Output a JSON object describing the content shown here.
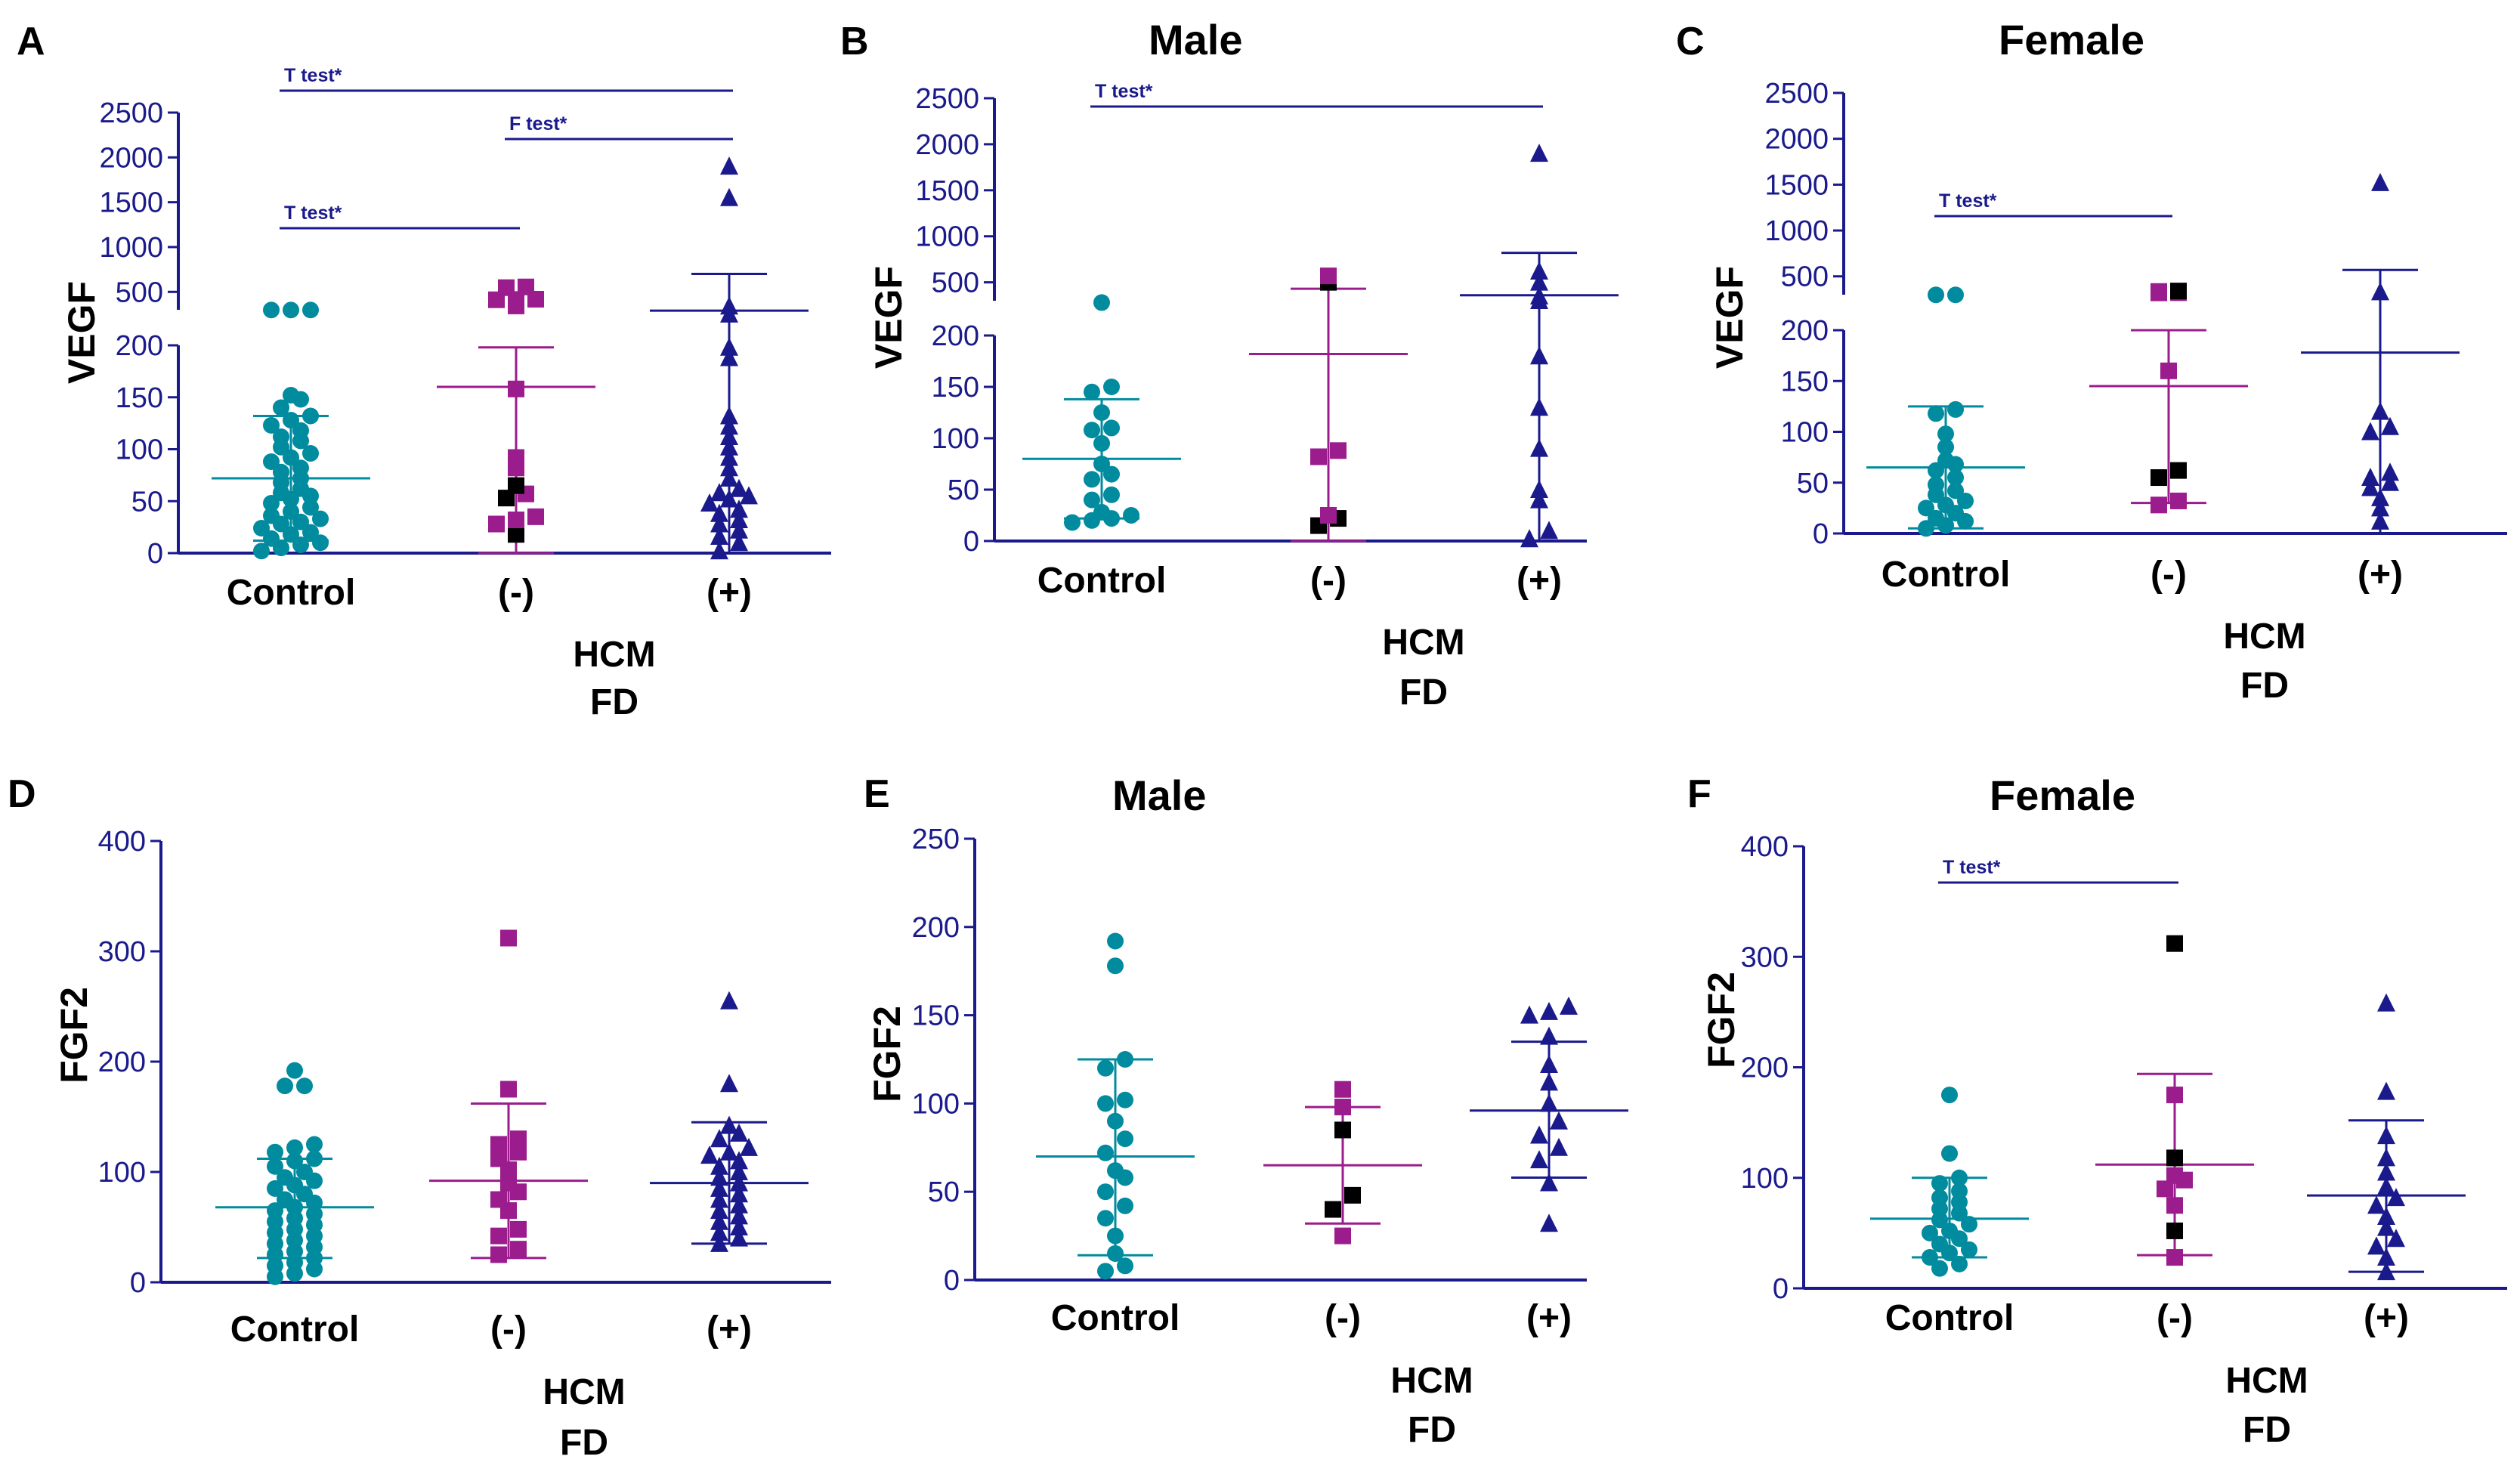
{
  "colors": {
    "axis": "#1a1a8c",
    "control": "#008b9e",
    "hcm_neg": "#9b1c8c",
    "fd_pos": "#1a1a8c",
    "black_marker": "#000000",
    "text": "#000000"
  },
  "chart_data": [
    {
      "id": "A",
      "type": "scatter",
      "panel_letter": "A",
      "title": "",
      "ylabel": "VEGF",
      "categories": [
        "Control",
        "(-)",
        "(+)"
      ],
      "xlabel_lines": [
        "HCM",
        "FD"
      ],
      "broken_axis": true,
      "lower_ylim": [
        0,
        200
      ],
      "lower_ticks": [
        0,
        50,
        100,
        150,
        200
      ],
      "upper_ylim": [
        300,
        2500
      ],
      "upper_ticks": [
        500,
        1000,
        1500,
        2000,
        2500
      ],
      "series": [
        {
          "name": "Control",
          "marker": "circle",
          "color": "#008b9e",
          "values": [
            2,
            5,
            8,
            10,
            14,
            18,
            20,
            24,
            28,
            30,
            33,
            36,
            40,
            44,
            48,
            52,
            55,
            58,
            62,
            68,
            72,
            78,
            82,
            88,
            92,
            96,
            102,
            108,
            112,
            118,
            123,
            128,
            132,
            140,
            148,
            152,
            298,
            298,
            298
          ],
          "black": [],
          "mean": 72,
          "sd_low": 12,
          "sd_high": 132
        },
        {
          "name": "(-)",
          "marker": "square",
          "color": "#9b1c8c",
          "values": [
            18,
            28,
            32,
            35,
            53,
            57,
            65,
            82,
            92,
            158,
            343,
            358,
            412,
            415,
            418,
            547,
            555
          ],
          "black": [
            18,
            53,
            65,
            548
          ],
          "mean": 160,
          "sd_low": 0,
          "sd_high": 198
        },
        {
          "name": "(+)",
          "marker": "triangle",
          "color": "#1a1a8c",
          "values": [
            2,
            10,
            16,
            22,
            28,
            32,
            38,
            42,
            48,
            52,
            55,
            58,
            62,
            72,
            82,
            92,
            102,
            112,
            122,
            132,
            188,
            198,
            250,
            340,
            1550,
            1900
          ],
          "black": [],
          "mean": 290,
          "sd_low": 0,
          "sd_high": 700
        }
      ],
      "significance": [
        {
          "label": "T test*",
          "from": 0,
          "to": 2,
          "level": 1
        },
        {
          "label": "F test*",
          "from": 1,
          "to": 2,
          "level": 2
        },
        {
          "label": "T test*",
          "from": 0,
          "to": 1,
          "level": 3
        }
      ]
    },
    {
      "id": "B",
      "type": "scatter",
      "panel_letter": "B",
      "title": "Male",
      "ylabel": "VEGF",
      "categories": [
        "Control",
        "(-)",
        "(+)"
      ],
      "xlabel_lines": [
        "HCM",
        "FD"
      ],
      "broken_axis": true,
      "lower_ylim": [
        0,
        200
      ],
      "lower_ticks": [
        0,
        50,
        100,
        150,
        200
      ],
      "upper_ylim": [
        300,
        2500
      ],
      "upper_ticks": [
        500,
        1000,
        1500,
        2000,
        2500
      ],
      "series": [
        {
          "name": "Control",
          "marker": "circle",
          "color": "#008b9e",
          "values": [
            18,
            20,
            22,
            25,
            28,
            40,
            45,
            60,
            65,
            75,
            95,
            108,
            110,
            125,
            145,
            150,
            280
          ],
          "black": [],
          "mean": 80,
          "sd_low": 22,
          "sd_high": 138
        },
        {
          "name": "(-)",
          "marker": "square",
          "color": "#9b1c8c",
          "values": [
            15,
            22,
            25,
            82,
            88,
            500,
            570
          ],
          "black": [
            15,
            22,
            500
          ],
          "mean": 182,
          "sd_low": 0,
          "sd_high": 430
        },
        {
          "name": "(+)",
          "marker": "triangle",
          "color": "#1a1a8c",
          "values": [
            2,
            10,
            40,
            50,
            90,
            130,
            180,
            300,
            350,
            500,
            620,
            1900
          ],
          "black": [],
          "mean": 360,
          "sd_low": 0,
          "sd_high": 820
        }
      ],
      "significance": [
        {
          "label": "T test*",
          "from": 0,
          "to": 2,
          "level": 1
        }
      ]
    },
    {
      "id": "C",
      "type": "scatter",
      "panel_letter": "C",
      "title": "Female",
      "ylabel": "VEGF",
      "categories": [
        "Control",
        "(-)",
        "(+)"
      ],
      "xlabel_lines": [
        "HCM",
        "FD"
      ],
      "broken_axis": true,
      "lower_ylim": [
        0,
        200
      ],
      "lower_ticks": [
        0,
        50,
        100,
        150,
        200
      ],
      "upper_ylim": [
        300,
        2500
      ],
      "upper_ticks": [
        500,
        1000,
        1500,
        2000,
        2500
      ],
      "series": [
        {
          "name": "Control",
          "marker": "circle",
          "color": "#008b9e",
          "values": [
            5,
            8,
            12,
            15,
            20,
            25,
            28,
            32,
            38,
            42,
            48,
            55,
            62,
            68,
            72,
            85,
            98,
            118,
            122,
            298,
            298
          ],
          "black": [],
          "mean": 65,
          "sd_low": 5,
          "sd_high": 125
        },
        {
          "name": "(-)",
          "marker": "square",
          "color": "#9b1c8c",
          "values": [
            28,
            32,
            55,
            62,
            160,
            335,
            320,
            322,
            340
          ],
          "black": [
            55,
            62,
            340
          ],
          "mean": 145,
          "sd_low": 30,
          "sd_high": 200
        },
        {
          "name": "(+)",
          "marker": "triangle",
          "color": "#1a1a8c",
          "values": [
            12,
            25,
            35,
            45,
            50,
            55,
            60,
            100,
            105,
            120,
            330,
            1520
          ],
          "black": [],
          "mean": 178,
          "sd_low": 0,
          "sd_high": 570
        }
      ],
      "significance": [
        {
          "label": "T test*",
          "from": 0,
          "to": 1,
          "level": 1
        }
      ]
    },
    {
      "id": "D",
      "type": "scatter",
      "panel_letter": "D",
      "title": "",
      "ylabel": "FGF2",
      "categories": [
        "Control",
        "(-)",
        "(+)"
      ],
      "xlabel_lines": [
        "HCM",
        "FD"
      ],
      "broken_axis": false,
      "ylim": [
        0,
        400
      ],
      "ticks": [
        0,
        100,
        200,
        300,
        400
      ],
      "series": [
        {
          "name": "Control",
          "marker": "circle",
          "color": "#008b9e",
          "values": [
            5,
            8,
            12,
            15,
            18,
            22,
            25,
            28,
            32,
            35,
            38,
            42,
            45,
            48,
            52,
            55,
            58,
            62,
            65,
            68,
            72,
            75,
            80,
            85,
            88,
            92,
            95,
            100,
            105,
            110,
            112,
            118,
            122,
            125,
            178,
            178,
            192
          ],
          "black": [],
          "mean": 68,
          "sd_low": 22,
          "sd_high": 112
        },
        {
          "name": "(-)",
          "marker": "square",
          "color": "#9b1c8c",
          "values": [
            25,
            30,
            42,
            48,
            65,
            75,
            82,
            90,
            102,
            112,
            118,
            125,
            130,
            175,
            312
          ],
          "black": [],
          "mean": 92,
          "sd_low": 22,
          "sd_high": 162
        },
        {
          "name": "(+)",
          "marker": "triangle",
          "color": "#1a1a8c",
          "values": [
            35,
            40,
            45,
            50,
            55,
            60,
            65,
            70,
            75,
            80,
            85,
            90,
            95,
            100,
            105,
            110,
            115,
            118,
            122,
            130,
            135,
            142,
            180,
            255
          ],
          "black": [],
          "mean": 90,
          "sd_low": 35,
          "sd_high": 145
        }
      ],
      "significance": []
    },
    {
      "id": "E",
      "type": "scatter",
      "panel_letter": "E",
      "title": "Male",
      "ylabel": "FGF2",
      "categories": [
        "Control",
        "(-)",
        "(+)"
      ],
      "xlabel_lines": [
        "HCM",
        "FD"
      ],
      "broken_axis": false,
      "ylim": [
        0,
        250
      ],
      "ticks": [
        0,
        50,
        100,
        150,
        200,
        250
      ],
      "series": [
        {
          "name": "Control",
          "marker": "circle",
          "color": "#008b9e",
          "values": [
            5,
            8,
            15,
            25,
            35,
            42,
            50,
            58,
            62,
            72,
            80,
            90,
            100,
            102,
            120,
            125,
            178,
            192
          ],
          "black": [],
          "mean": 70,
          "sd_low": 14,
          "sd_high": 125
        },
        {
          "name": "(-)",
          "marker": "square",
          "color": "#9b1c8c",
          "values": [
            25,
            40,
            48,
            85,
            98,
            108
          ],
          "black": [
            40,
            48,
            85
          ],
          "mean": 65,
          "sd_low": 32,
          "sd_high": 98
        },
        {
          "name": "(+)",
          "marker": "triangle",
          "color": "#1a1a8c",
          "values": [
            32,
            55,
            68,
            75,
            82,
            90,
            100,
            112,
            122,
            138,
            150,
            152,
            155
          ],
          "black": [],
          "mean": 96,
          "sd_low": 58,
          "sd_high": 135
        }
      ],
      "significance": []
    },
    {
      "id": "F",
      "type": "scatter",
      "panel_letter": "F",
      "title": "Female",
      "ylabel": "FGF2",
      "categories": [
        "Control",
        "(-)",
        "(+)"
      ],
      "xlabel_lines": [
        "HCM",
        "FD"
      ],
      "broken_axis": false,
      "ylim": [
        0,
        400
      ],
      "ticks": [
        0,
        100,
        200,
        300,
        400
      ],
      "series": [
        {
          "name": "Control",
          "marker": "circle",
          "color": "#008b9e",
          "values": [
            18,
            22,
            28,
            32,
            35,
            40,
            45,
            50,
            52,
            58,
            62,
            68,
            72,
            78,
            82,
            88,
            95,
            100,
            122,
            175
          ],
          "black": [],
          "mean": 63,
          "sd_low": 28,
          "sd_high": 100
        },
        {
          "name": "(-)",
          "marker": "square",
          "color": "#9b1c8c",
          "values": [
            28,
            52,
            75,
            90,
            98,
            102,
            118,
            175,
            312
          ],
          "black": [
            52,
            118,
            312
          ],
          "mean": 112,
          "sd_low": 30,
          "sd_high": 194
        },
        {
          "name": "(+)",
          "marker": "triangle",
          "color": "#1a1a8c",
          "values": [
            15,
            28,
            38,
            45,
            55,
            65,
            75,
            82,
            92,
            105,
            118,
            138,
            178,
            258
          ],
          "black": [],
          "mean": 84,
          "sd_low": 15,
          "sd_high": 152
        }
      ],
      "significance": [
        {
          "label": "T test*",
          "from": 0,
          "to": 1,
          "level": 1
        }
      ]
    }
  ]
}
